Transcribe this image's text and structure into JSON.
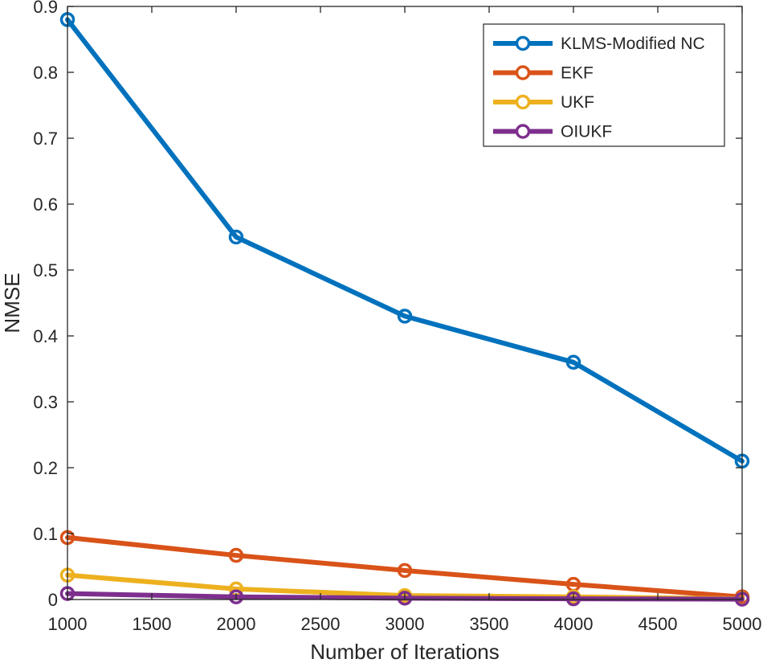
{
  "chart_data": {
    "type": "line",
    "title": "",
    "xlabel": "Number of Iterations",
    "ylabel": "NMSE",
    "xlim": [
      1000,
      5000
    ],
    "ylim": [
      0,
      0.9
    ],
    "xticks": [
      1000,
      1500,
      2000,
      2500,
      3000,
      3500,
      4000,
      4500,
      5000
    ],
    "yticks": [
      0,
      0.1,
      0.2,
      0.3,
      0.4,
      0.5,
      0.6,
      0.7,
      0.8,
      0.9
    ],
    "xtick_labels": [
      "1000",
      "1500",
      "2000",
      "2500",
      "3000",
      "3500",
      "4000",
      "4500",
      "5000"
    ],
    "ytick_labels": [
      "0",
      "0.1",
      "0.2",
      "0.3",
      "0.4",
      "0.5",
      "0.6",
      "0.7",
      "0.8",
      "0.9"
    ],
    "grid": false,
    "legend_position": "top-right",
    "x": [
      1000,
      2000,
      3000,
      4000,
      5000
    ],
    "series": [
      {
        "name": "KLMS-Modified NC",
        "color": "#0072BD",
        "marker": "circle",
        "values": [
          0.88,
          0.55,
          0.43,
          0.36,
          0.21
        ]
      },
      {
        "name": "EKF",
        "color": "#D95319",
        "marker": "circle",
        "values": [
          0.094,
          0.067,
          0.044,
          0.023,
          0.004
        ]
      },
      {
        "name": "UKF",
        "color": "#EDB120",
        "marker": "circle",
        "values": [
          0.037,
          0.016,
          0.006,
          0.004,
          0.001
        ]
      },
      {
        "name": "OIUKF",
        "color": "#7E2F8E",
        "marker": "circle",
        "values": [
          0.009,
          0.004,
          0.002,
          0.001,
          0.0005
        ]
      }
    ]
  }
}
